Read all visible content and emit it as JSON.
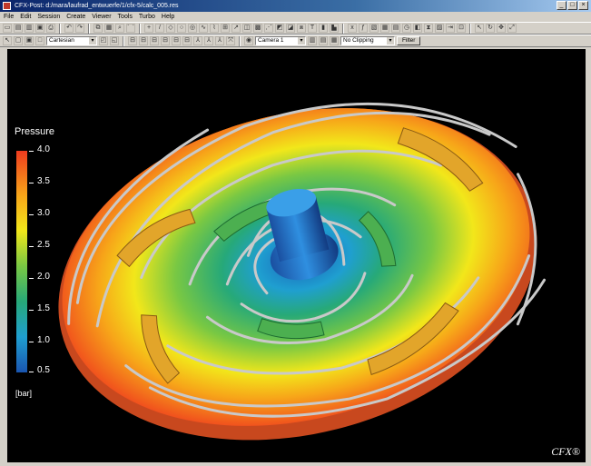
{
  "window": {
    "title": "CFX-Post: d:/mara/laufrad_entwuerfe/1/cfx-5/calc_005.res",
    "buttons": [
      "_",
      "□",
      "×"
    ]
  },
  "menu": [
    "File",
    "Edit",
    "Session",
    "Create",
    "Viewer",
    "Tools",
    "Turbo",
    "Help"
  ],
  "toolbar2": {
    "coord_combo": "Cartesian",
    "camera_combo": "Camera 1",
    "clipping_combo": "No Clipping",
    "filter_label": "Filter"
  },
  "legend": {
    "title": "Pressure",
    "ticks": [
      "4.0",
      "3.5",
      "3.0",
      "2.5",
      "2.0",
      "1.5",
      "1.0",
      "0.5"
    ],
    "unit": "[bar]",
    "colors": [
      "#ef3b1e",
      "#f7a519",
      "#f2e71a",
      "#79c843",
      "#27a978",
      "#1f9fd0",
      "#1a55b0"
    ]
  },
  "logo": "CFX®"
}
